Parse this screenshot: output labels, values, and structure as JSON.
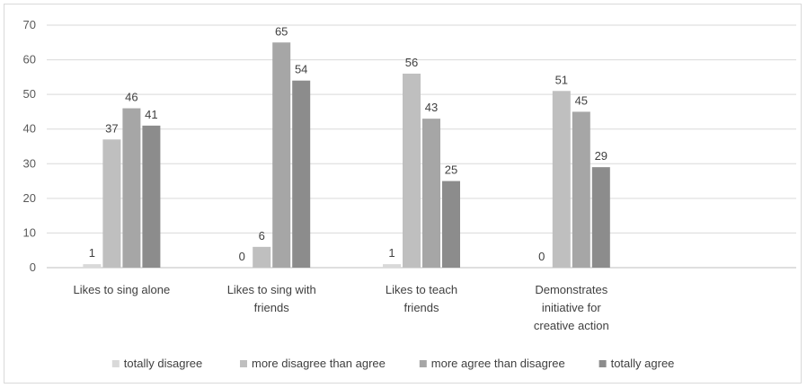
{
  "chart_data": {
    "type": "bar",
    "categories": [
      [
        "Likes to sing alone"
      ],
      [
        "Likes to sing with",
        "friends"
      ],
      [
        "Likes to teach",
        "friends"
      ],
      [
        "Demonstrates",
        "initiative for",
        "creative action"
      ]
    ],
    "series": [
      {
        "name": "totally disagree",
        "color": "#d9d9d9",
        "values": [
          1,
          0,
          1,
          0
        ]
      },
      {
        "name": "more disagree than agree",
        "color": "#bfbfbf",
        "values": [
          37,
          6,
          56,
          51
        ]
      },
      {
        "name": "more agree than disagree",
        "color": "#a6a6a6",
        "values": [
          46,
          65,
          43,
          45
        ]
      },
      {
        "name": "totally agree",
        "color": "#8c8c8c",
        "values": [
          41,
          54,
          25,
          29
        ]
      }
    ],
    "ylim": [
      0,
      70
    ],
    "yticks": [
      0,
      10,
      20,
      30,
      40,
      50,
      60,
      70
    ],
    "grid": true,
    "legend": "bottom",
    "data_labels": true,
    "empty_category_slots": 1
  }
}
